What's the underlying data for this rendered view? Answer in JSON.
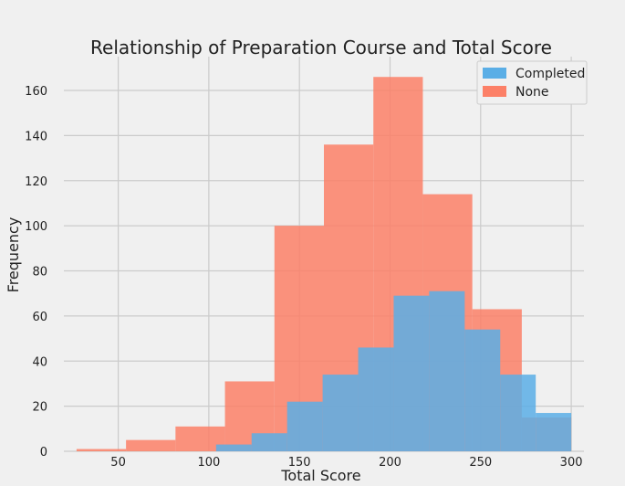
{
  "chart_data": {
    "type": "histogram",
    "title": "Relationship of Preparation Course and Total Score",
    "xlabel": "Total Score",
    "ylabel": "Frequency",
    "xlim": [
      20,
      307
    ],
    "ylim": [
      0,
      175
    ],
    "xticks": [
      50,
      100,
      150,
      200,
      250,
      300
    ],
    "yticks": [
      0,
      20,
      40,
      60,
      80,
      100,
      120,
      140,
      160
    ],
    "grid": true,
    "legend_position": "top-right",
    "series": [
      {
        "name": "None",
        "color": "#fc8067",
        "bins": [
          {
            "x0": 27,
            "x1": 54.3,
            "count": 1
          },
          {
            "x0": 54.3,
            "x1": 81.6,
            "count": 5
          },
          {
            "x0": 81.6,
            "x1": 108.9,
            "count": 11
          },
          {
            "x0": 108.9,
            "x1": 136.2,
            "count": 31
          },
          {
            "x0": 136.2,
            "x1": 163.5,
            "count": 100
          },
          {
            "x0": 163.5,
            "x1": 190.8,
            "count": 136
          },
          {
            "x0": 190.8,
            "x1": 218.1,
            "count": 166
          },
          {
            "x0": 218.1,
            "x1": 245.4,
            "count": 114
          },
          {
            "x0": 245.4,
            "x1": 272.7,
            "count": 63
          },
          {
            "x0": 272.7,
            "x1": 300,
            "count": 15
          }
        ]
      },
      {
        "name": "Completed",
        "color": "#5aaee6",
        "bins": [
          {
            "x0": 104,
            "x1": 123.6,
            "count": 3
          },
          {
            "x0": 123.6,
            "x1": 143.2,
            "count": 8
          },
          {
            "x0": 143.2,
            "x1": 162.8,
            "count": 22
          },
          {
            "x0": 162.8,
            "x1": 182.4,
            "count": 34
          },
          {
            "x0": 182.4,
            "x1": 202,
            "count": 46
          },
          {
            "x0": 202,
            "x1": 221.6,
            "count": 69
          },
          {
            "x0": 221.6,
            "x1": 241.2,
            "count": 71
          },
          {
            "x0": 241.2,
            "x1": 260.8,
            "count": 54
          },
          {
            "x0": 260.8,
            "x1": 280.4,
            "count": 34
          },
          {
            "x0": 280.4,
            "x1": 300,
            "count": 17
          }
        ]
      }
    ],
    "legend": [
      "Completed",
      "None"
    ]
  }
}
